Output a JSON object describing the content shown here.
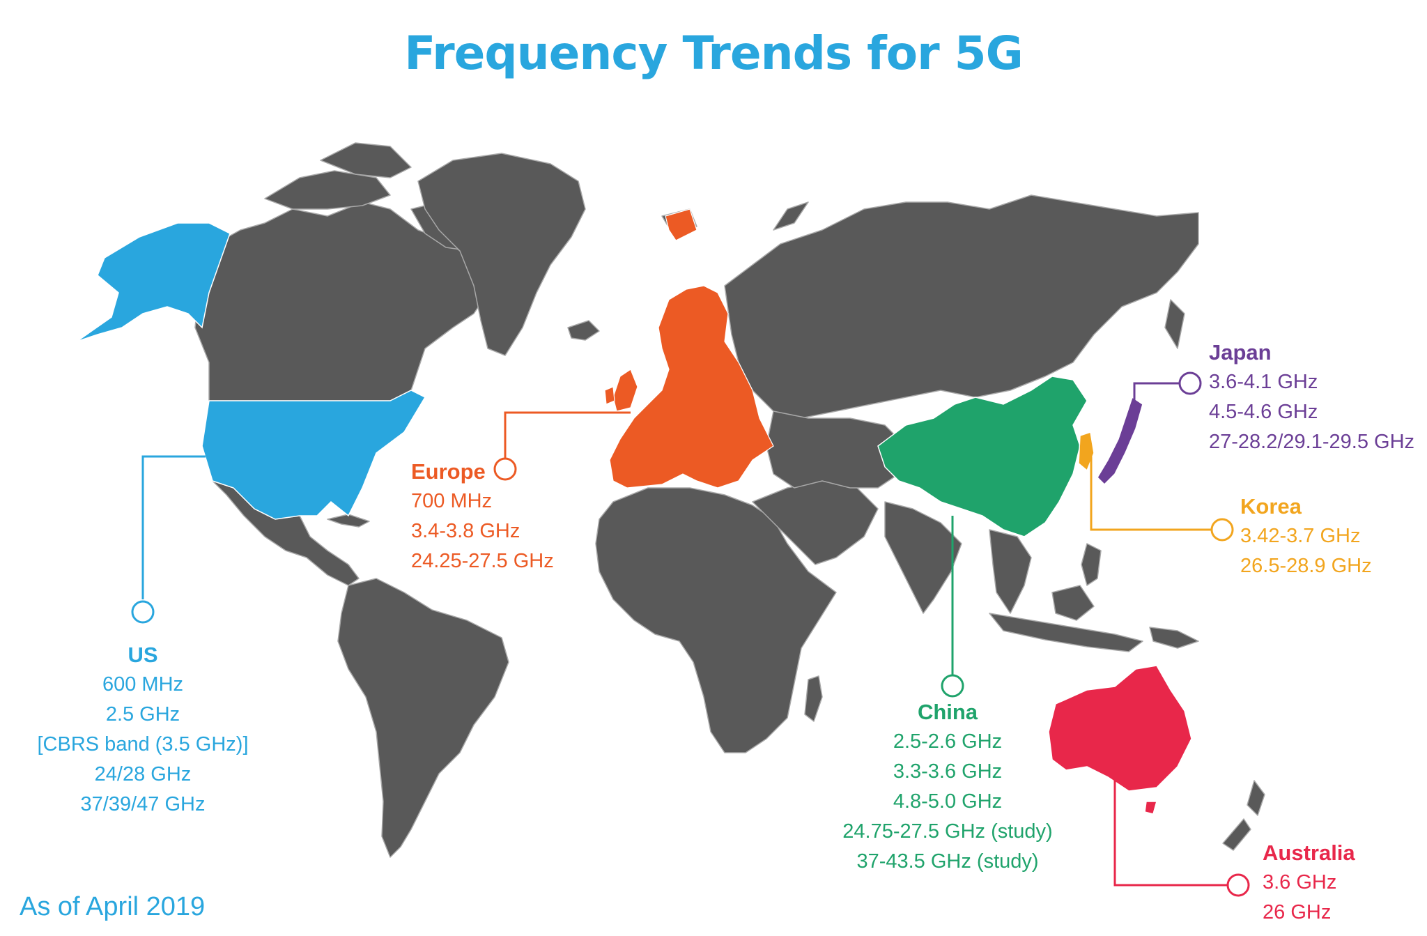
{
  "title": "Frequency Trends for 5G",
  "note": "As of April 2019",
  "colors": {
    "land": "#595959",
    "border": "#a8a8a8",
    "us": "#29a6de",
    "europe": "#ec5a24",
    "china": "#1fa36b",
    "korea": "#f2a51e",
    "japan": "#6b3e96",
    "australia": "#e8274a"
  },
  "regions": {
    "us": {
      "name": "US",
      "bands": [
        "600 MHz",
        "2.5 GHz",
        "[CBRS band (3.5 GHz)]",
        "24/28 GHz",
        "37/39/47 GHz"
      ]
    },
    "europe": {
      "name": "Europe",
      "bands": [
        "700 MHz",
        "3.4-3.8 GHz",
        "24.25-27.5 GHz"
      ]
    },
    "china": {
      "name": "China",
      "bands": [
        "2.5-2.6  GHz",
        "3.3-3.6 GHz",
        "4.8-5.0 GHz",
        "24.75-27.5 GHz (study)",
        "37-43.5 GHz (study)"
      ]
    },
    "japan": {
      "name": "Japan",
      "bands": [
        "3.6-4.1 GHz",
        "4.5-4.6 GHz",
        "27-28.2/29.1-29.5 GHz"
      ]
    },
    "korea": {
      "name": "Korea",
      "bands": [
        "3.42-3.7 GHz",
        "26.5-28.9 GHz"
      ]
    },
    "australia": {
      "name": "Australia",
      "bands": [
        "3.6 GHz",
        "26 GHz"
      ]
    }
  }
}
